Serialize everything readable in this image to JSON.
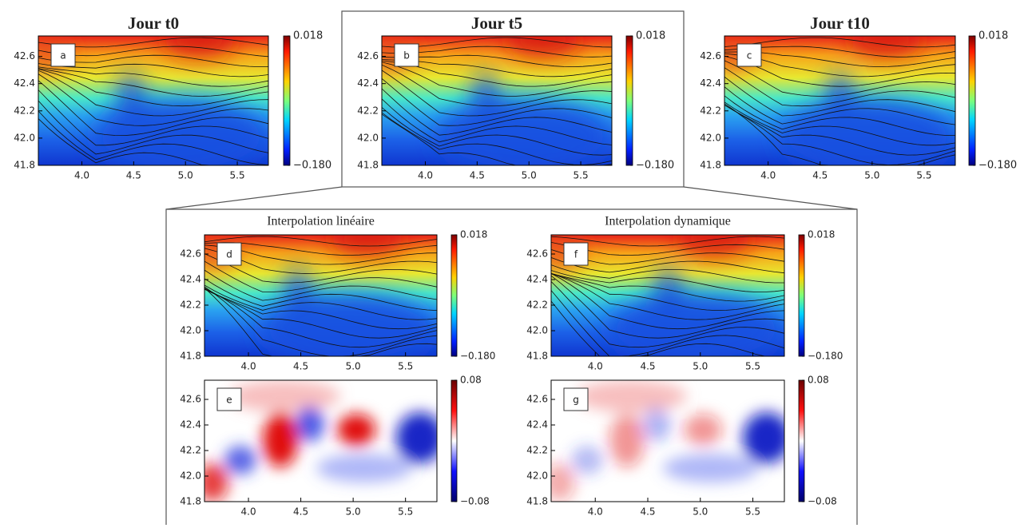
{
  "chart_data": [
    {
      "type": "contour",
      "title": "Jour t0",
      "panel": "a",
      "colormap": "jet",
      "xlim": [
        3.58,
        5.8
      ],
      "ylim": [
        41.8,
        42.75
      ],
      "xticks": [
        {
          "value": 4,
          "label": "4.0"
        },
        4.5,
        {
          "value": 5,
          "label": "5.0"
        },
        5.5
      ],
      "yticks": [
        41.8,
        {
          "value": 42,
          "label": "42.0"
        },
        42.2,
        42.4,
        42.6
      ],
      "clim": [
        -0.18,
        0.018
      ],
      "cticks": [
        {
          "value": -0.18,
          "label": "−0.180"
        },
        0.018
      ]
    },
    {
      "type": "contour",
      "title": "Jour t5",
      "panel": "b",
      "colormap": "jet",
      "xlim": [
        3.58,
        5.8
      ],
      "ylim": [
        41.8,
        42.75
      ],
      "xticks": [
        {
          "value": 4,
          "label": "4.0"
        },
        4.5,
        {
          "value": 5,
          "label": "5.0"
        },
        5.5
      ],
      "yticks": [
        41.8,
        {
          "value": 42,
          "label": "42.0"
        },
        42.2,
        42.4,
        42.6
      ],
      "clim": [
        -0.18,
        0.018
      ],
      "cticks": [
        {
          "value": -0.18,
          "label": "−0.180"
        },
        0.018
      ]
    },
    {
      "type": "contour",
      "title": "Jour t10",
      "panel": "c",
      "colormap": "jet",
      "xlim": [
        3.58,
        5.8
      ],
      "ylim": [
        41.8,
        42.75
      ],
      "xticks": [
        {
          "value": 4,
          "label": "4.0"
        },
        4.5,
        {
          "value": 5,
          "label": "5.0"
        },
        5.5
      ],
      "yticks": [
        41.8,
        {
          "value": 42,
          "label": "42.0"
        },
        42.2,
        42.4,
        42.6
      ],
      "clim": [
        -0.18,
        0.018
      ],
      "cticks": [
        {
          "value": -0.18,
          "label": "−0.180"
        },
        0.018
      ]
    },
    {
      "type": "contour",
      "title": "Interpolation linéaire",
      "panel": "d",
      "colormap": "jet",
      "xlim": [
        3.58,
        5.8
      ],
      "ylim": [
        41.8,
        42.75
      ],
      "xticks": [
        {
          "value": 4,
          "label": "4.0"
        },
        4.5,
        {
          "value": 5,
          "label": "5.0"
        },
        5.5
      ],
      "yticks": [
        41.8,
        {
          "value": 42,
          "label": "42.0"
        },
        42.2,
        42.4,
        42.6
      ],
      "clim": [
        -0.18,
        0.018
      ],
      "cticks": [
        {
          "value": -0.18,
          "label": "−0.180"
        },
        0.018
      ]
    },
    {
      "type": "heatmap",
      "panel": "e",
      "colormap": "bwr",
      "xlim": [
        3.58,
        5.8
      ],
      "ylim": [
        41.8,
        42.75
      ],
      "xticks": [
        {
          "value": 4,
          "label": "4.0"
        },
        4.5,
        {
          "value": 5,
          "label": "5.0"
        },
        5.5
      ],
      "yticks": [
        41.8,
        {
          "value": 42,
          "label": "42.0"
        },
        42.2,
        42.4,
        42.6
      ],
      "clim": [
        -0.08,
        0.08
      ],
      "cticks": [
        {
          "value": -0.08,
          "label": "−0.08"
        },
        0.08
      ]
    },
    {
      "type": "contour",
      "title": "Interpolation dynamique",
      "panel": "f",
      "colormap": "jet",
      "xlim": [
        3.58,
        5.8
      ],
      "ylim": [
        41.8,
        42.75
      ],
      "xticks": [
        {
          "value": 4,
          "label": "4.0"
        },
        4.5,
        {
          "value": 5,
          "label": "5.0"
        },
        5.5
      ],
      "yticks": [
        41.8,
        {
          "value": 42,
          "label": "42.0"
        },
        42.2,
        42.4,
        42.6
      ],
      "clim": [
        -0.18,
        0.018
      ],
      "cticks": [
        {
          "value": -0.18,
          "label": "−0.180"
        },
        0.018
      ]
    },
    {
      "type": "heatmap",
      "panel": "g",
      "colormap": "bwr",
      "xlim": [
        3.58,
        5.8
      ],
      "ylim": [
        41.8,
        42.75
      ],
      "xticks": [
        {
          "value": 4,
          "label": "4.0"
        },
        4.5,
        {
          "value": 5,
          "label": "5.0"
        },
        5.5
      ],
      "yticks": [
        41.8,
        {
          "value": 42,
          "label": "42.0"
        },
        42.2,
        42.4,
        42.6
      ],
      "clim": [
        -0.08,
        0.08
      ],
      "cticks": [
        {
          "value": -0.08,
          "label": "−0.08"
        },
        0.08
      ]
    }
  ]
}
